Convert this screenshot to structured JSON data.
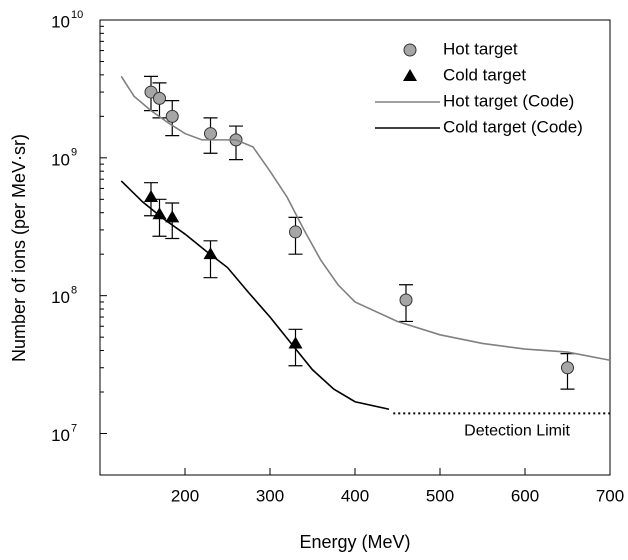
{
  "chart_data": {
    "type": "scatter-line",
    "x_label": "Energy (MeV)",
    "y_label": "Number of ions (per MeV·sr)",
    "xlim": [
      100,
      700
    ],
    "xticks": [
      200,
      300,
      400,
      500,
      600,
      700
    ],
    "ylim": [
      5000000,
      10000000000
    ],
    "log_y": true,
    "yticks": [
      {
        "value": 10000000,
        "label": "10",
        "exponent": "7"
      },
      {
        "value": 100000000,
        "label": "10",
        "exponent": "8"
      },
      {
        "value": 1000000000,
        "label": "10",
        "exponent": "9"
      },
      {
        "value": 10000000000,
        "label": "10",
        "exponent": "10"
      }
    ],
    "legend": "upper right",
    "series": [
      {
        "name": "Hot target",
        "kind": "scatter",
        "marker": "circle",
        "color": "#a6a6a6",
        "x": [
          160,
          170,
          185,
          230,
          260,
          330,
          460,
          650
        ],
        "values": [
          3000000000,
          2700000000,
          2000000000,
          1500000000,
          1350000000,
          290000000,
          93000000,
          30000000
        ],
        "err_low": [
          2200000000,
          1950000000,
          1450000000,
          1080000000,
          970000000,
          200000000,
          65000000,
          21000000
        ],
        "err_high": [
          3900000000,
          3500000000,
          2600000000,
          1950000000,
          1700000000,
          370000000,
          120000000,
          38000000
        ]
      },
      {
        "name": "Cold target",
        "kind": "scatter",
        "marker": "triangle",
        "color": "#000000",
        "x": [
          160,
          170,
          185,
          230,
          330
        ],
        "values": [
          520000000,
          390000000,
          370000000,
          200000000,
          45000000
        ],
        "err_low": [
          380000000,
          270000000,
          260000000,
          135000000,
          31000000
        ],
        "err_high": [
          660000000,
          500000000,
          470000000,
          250000000,
          57000000
        ]
      },
      {
        "name": "Hot target (Code)",
        "kind": "line",
        "color": "#808080",
        "x": [
          125,
          140,
          160,
          180,
          200,
          220,
          240,
          260,
          280,
          300,
          320,
          340,
          360,
          380,
          400,
          450,
          500,
          550,
          600,
          650,
          700
        ],
        "values": [
          3900000000,
          2800000000,
          2200000000,
          1800000000,
          1500000000,
          1350000000,
          1350000000,
          1350000000,
          1200000000,
          800000000,
          520000000,
          300000000,
          180000000,
          120000000,
          90000000,
          65000000,
          52000000,
          45000000,
          41000000,
          39000000,
          34000000
        ]
      },
      {
        "name": "Cold target (Code)",
        "kind": "line",
        "color": "#000000",
        "x": [
          125,
          150,
          175,
          200,
          225,
          250,
          275,
          300,
          325,
          350,
          375,
          400,
          440
        ],
        "values": [
          680000000,
          480000000,
          360000000,
          280000000,
          210000000,
          160000000,
          105000000,
          70000000,
          45000000,
          29000000,
          21000000,
          17000000,
          15000000
        ]
      }
    ],
    "detection_limit": {
      "label": "Detection Limit",
      "value": 14000000,
      "x": [
        445,
        700
      ]
    }
  }
}
